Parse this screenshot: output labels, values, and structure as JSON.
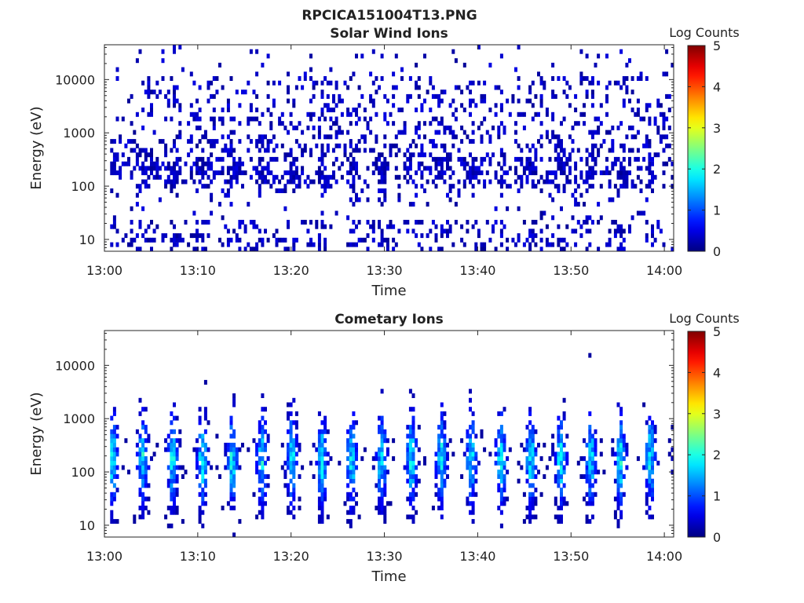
{
  "figure_title": "RPCICA151004T13.PNG",
  "colors": {
    "background": "#ffffff",
    "axis": "#262626",
    "colormap": "jet"
  },
  "chart_data": [
    {
      "type": "heatmap",
      "title": "Solar Wind Ions",
      "xlabel": "Time",
      "ylabel": "Energy (eV)",
      "yscale": "log",
      "xlim": [
        "13:00",
        "14:01"
      ],
      "ylim": [
        6,
        45000
      ],
      "x_ticks": [
        "13:00",
        "13:10",
        "13:20",
        "13:30",
        "13:40",
        "13:50",
        "14:00"
      ],
      "y_ticks": [
        10,
        100,
        1000,
        10000
      ],
      "y_tick_labels": [
        "10",
        "100",
        "1000",
        "10000"
      ],
      "colorbar": {
        "label": "Log Counts",
        "range": [
          0,
          5
        ],
        "ticks": [
          "0",
          "1",
          "2",
          "3",
          "4",
          "5"
        ]
      },
      "description": "Sparse low counts (log ~0-0.3) scattered across all energies, denser 100-400 eV with periodic bands roughly every 3 minutes",
      "grid": false
    },
    {
      "type": "heatmap",
      "title": "Cometary Ions",
      "xlabel": "Time",
      "ylabel": "Energy (eV)",
      "yscale": "log",
      "xlim": [
        "13:00",
        "14:01"
      ],
      "ylim": [
        6,
        45000
      ],
      "x_ticks": [
        "13:00",
        "13:10",
        "13:20",
        "13:30",
        "13:40",
        "13:50",
        "14:00"
      ],
      "y_ticks": [
        10,
        100,
        1000,
        10000
      ],
      "y_tick_labels": [
        "10",
        "100",
        "1000",
        "10000"
      ],
      "colorbar": {
        "label": "Log Counts",
        "range": [
          0,
          5
        ],
        "ticks": [
          "0",
          "1",
          "2",
          "3",
          "4",
          "5"
        ]
      },
      "description": "Periodic bursts roughly every 3.2 minutes between 13:01 and 14:01, energy 20-2000 eV, peak log counts ~1.5-2 near 100-300 eV",
      "grid": false
    }
  ]
}
